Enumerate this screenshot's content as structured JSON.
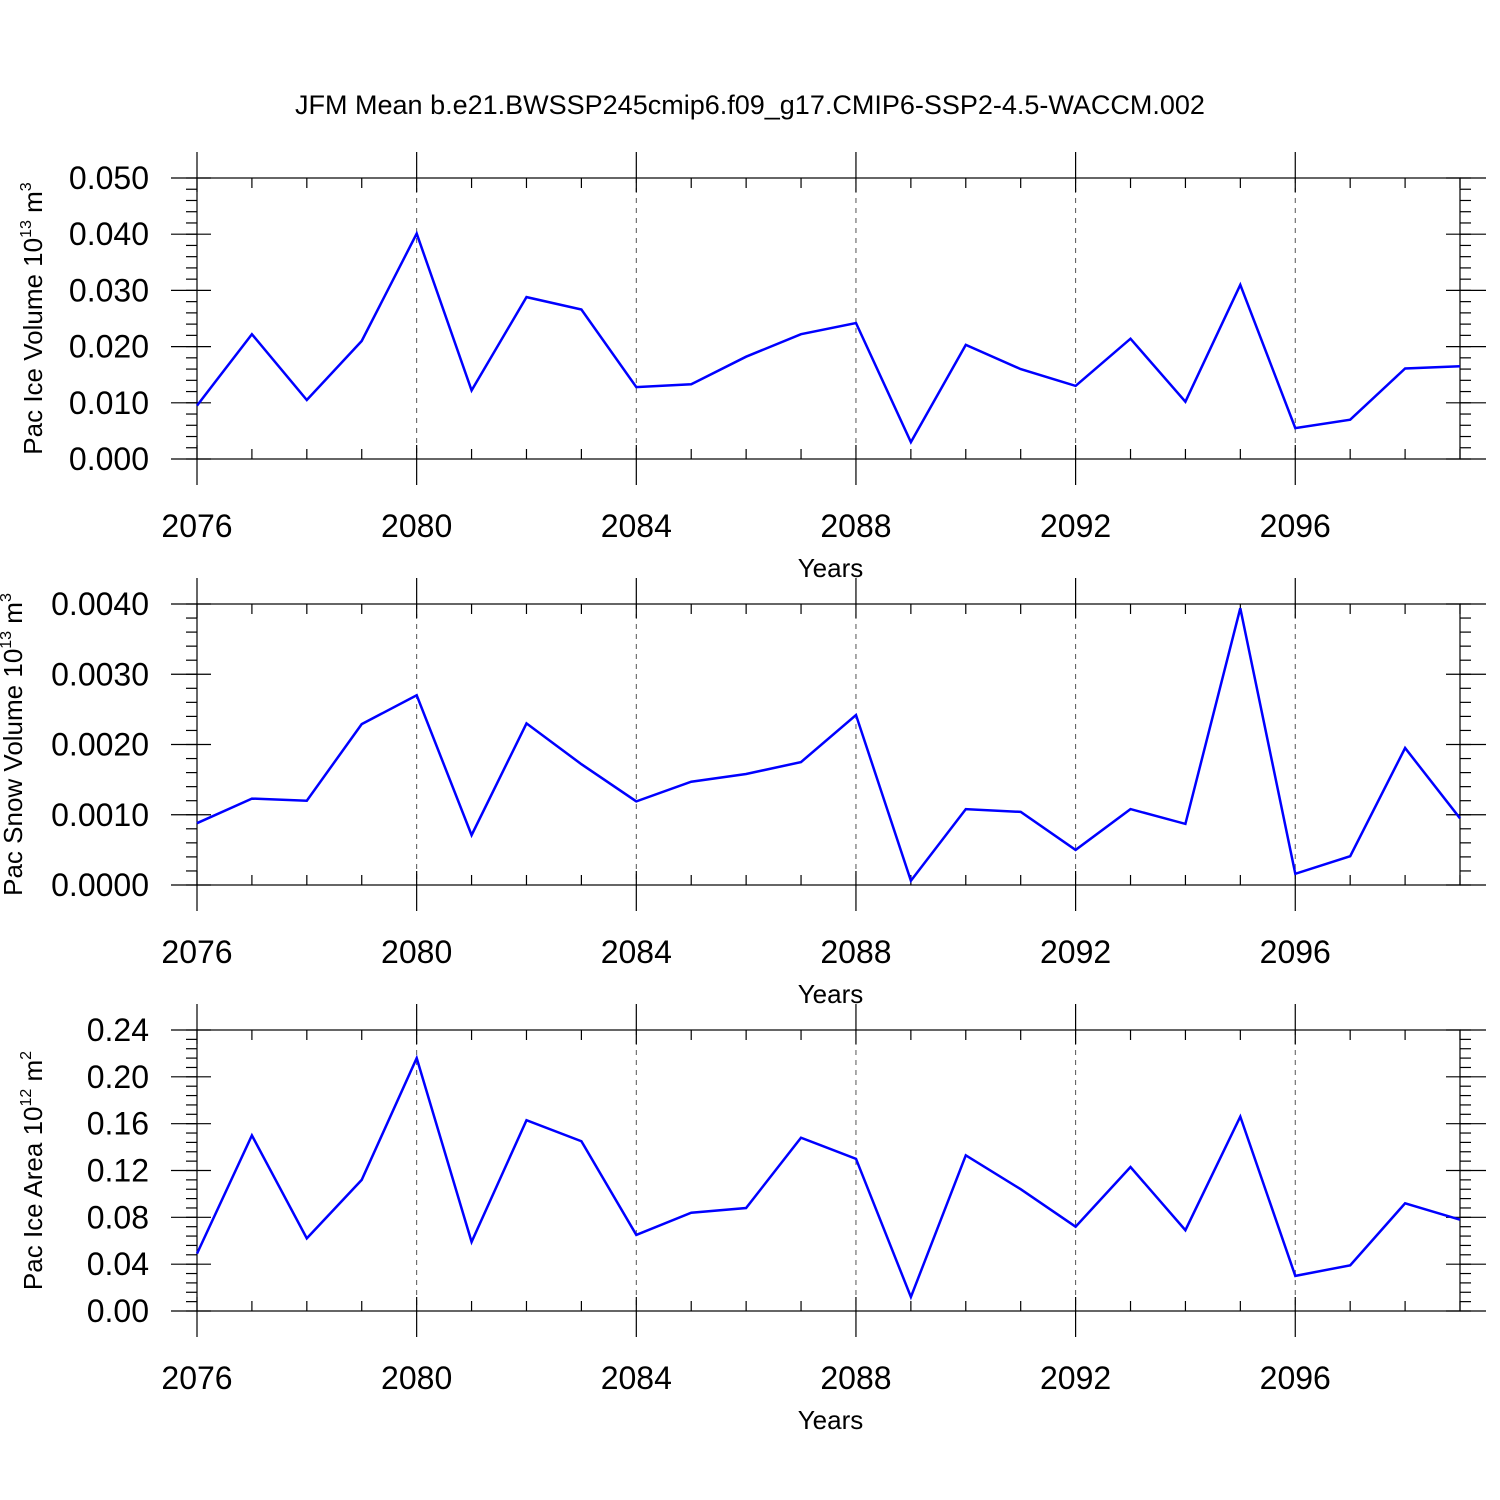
{
  "figure": {
    "title": "JFM Mean b.e21.BWSSP245cmip6.f09_g17.CMIP6-SSP2-4.5-WACCM.002",
    "line_color": "#0000ff"
  },
  "chart_data": [
    {
      "type": "line",
      "name": "pac-ice-volume",
      "xlabel": "Years",
      "ylabel": "Pac Ice Volume 10",
      "ylabel_exp": "13",
      "ylabel_unit": " m",
      "ylabel_unit_exp": "3",
      "xlim": [
        2076,
        2099
      ],
      "ylim": [
        0.0,
        0.05
      ],
      "x_ticks": [
        2076,
        2080,
        2084,
        2088,
        2092,
        2096
      ],
      "x_tick_labels": [
        "2076",
        "2080",
        "2084",
        "2088",
        "2092",
        "2096"
      ],
      "y_ticks": [
        0.0,
        0.01,
        0.02,
        0.03,
        0.04,
        0.05
      ],
      "y_tick_labels": [
        "0.000",
        "0.010",
        "0.020",
        "0.030",
        "0.040",
        "0.050"
      ],
      "y_minor_step": 0.002,
      "series": [
        {
          "name": "Pac Ice Volume",
          "x": [
            2076,
            2077,
            2078,
            2079,
            2080,
            2081,
            2082,
            2083,
            2084,
            2085,
            2086,
            2087,
            2088,
            2089,
            2090,
            2091,
            2092,
            2093,
            2094,
            2095,
            2096,
            2097,
            2098,
            2099
          ],
          "values": [
            0.0095,
            0.0222,
            0.0105,
            0.021,
            0.0401,
            0.0122,
            0.0288,
            0.0266,
            0.0128,
            0.0133,
            0.0182,
            0.0222,
            0.0242,
            0.003,
            0.0203,
            0.016,
            0.013,
            0.0214,
            0.0102,
            0.031,
            0.0055,
            0.007,
            0.0161,
            0.0165
          ]
        }
      ]
    },
    {
      "type": "line",
      "name": "pac-snow-volume",
      "xlabel": "Years",
      "ylabel": "Pac Snow Volume 10",
      "ylabel_exp": "13",
      "ylabel_unit": " m",
      "ylabel_unit_exp": "3",
      "xlim": [
        2076,
        2099
      ],
      "ylim": [
        0.0,
        0.004
      ],
      "x_ticks": [
        2076,
        2080,
        2084,
        2088,
        2092,
        2096
      ],
      "x_tick_labels": [
        "2076",
        "2080",
        "2084",
        "2088",
        "2092",
        "2096"
      ],
      "y_ticks": [
        0.0,
        0.001,
        0.002,
        0.003,
        0.004
      ],
      "y_tick_labels": [
        "0.0000",
        "0.0010",
        "0.0020",
        "0.0030",
        "0.0040"
      ],
      "y_minor_step": 0.0002,
      "series": [
        {
          "name": "Pac Snow Volume",
          "x": [
            2076,
            2077,
            2078,
            2079,
            2080,
            2081,
            2082,
            2083,
            2084,
            2085,
            2086,
            2087,
            2088,
            2089,
            2090,
            2091,
            2092,
            2093,
            2094,
            2095,
            2096,
            2097,
            2098,
            2099
          ],
          "values": [
            0.00088,
            0.00123,
            0.0012,
            0.00229,
            0.0027,
            0.00071,
            0.0023,
            0.00172,
            0.00119,
            0.00147,
            0.00158,
            0.00175,
            0.00242,
            6e-05,
            0.00108,
            0.00104,
            0.0005,
            0.00108,
            0.00087,
            0.00394,
            0.00016,
            0.00041,
            0.00195,
            0.00095
          ]
        }
      ]
    },
    {
      "type": "line",
      "name": "pac-ice-area",
      "xlabel": "Years",
      "ylabel": "Pac Ice Area 10",
      "ylabel_exp": "12",
      "ylabel_unit": " m",
      "ylabel_unit_exp": "2",
      "xlim": [
        2076,
        2099
      ],
      "ylim": [
        0.0,
        0.24
      ],
      "x_ticks": [
        2076,
        2080,
        2084,
        2088,
        2092,
        2096
      ],
      "x_tick_labels": [
        "2076",
        "2080",
        "2084",
        "2088",
        "2092",
        "2096"
      ],
      "y_ticks": [
        0.0,
        0.04,
        0.08,
        0.12,
        0.16,
        0.2,
        0.24
      ],
      "y_tick_labels": [
        "0.00",
        "0.04",
        "0.08",
        "0.12",
        "0.16",
        "0.20",
        "0.24"
      ],
      "y_minor_step": 0.008,
      "series": [
        {
          "name": "Pac Ice Area",
          "x": [
            2076,
            2077,
            2078,
            2079,
            2080,
            2081,
            2082,
            2083,
            2084,
            2085,
            2086,
            2087,
            2088,
            2089,
            2090,
            2091,
            2092,
            2093,
            2094,
            2095,
            2096,
            2097,
            2098,
            2099
          ],
          "values": [
            0.049,
            0.15,
            0.062,
            0.112,
            0.216,
            0.059,
            0.163,
            0.145,
            0.065,
            0.084,
            0.088,
            0.148,
            0.13,
            0.012,
            0.133,
            0.104,
            0.072,
            0.123,
            0.069,
            0.166,
            0.03,
            0.039,
            0.092,
            0.078
          ]
        }
      ]
    }
  ]
}
